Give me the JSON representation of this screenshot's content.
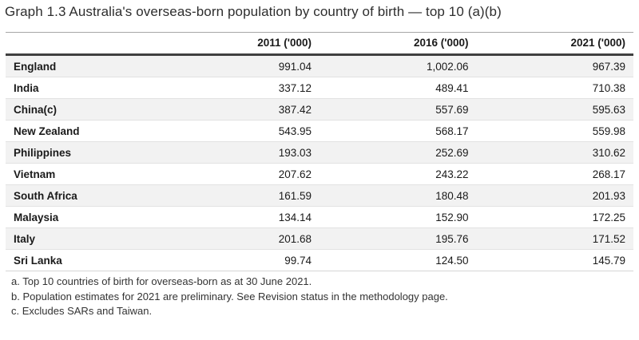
{
  "title": "Graph 1.3 Australia's overseas-born population by country of birth — top 10 (a)(b)",
  "table": {
    "columns": [
      "2011 ('000)",
      "2016 ('000)",
      "2021 ('000)"
    ],
    "rows": [
      {
        "country": "England",
        "values": [
          "991.04",
          "1,002.06",
          "967.39"
        ]
      },
      {
        "country": "India",
        "values": [
          "337.12",
          "489.41",
          "710.38"
        ]
      },
      {
        "country": "China(c)",
        "values": [
          "387.42",
          "557.69",
          "595.63"
        ]
      },
      {
        "country": "New Zealand",
        "values": [
          "543.95",
          "568.17",
          "559.98"
        ]
      },
      {
        "country": "Philippines",
        "values": [
          "193.03",
          "252.69",
          "310.62"
        ]
      },
      {
        "country": "Vietnam",
        "values": [
          "207.62",
          "243.22",
          "268.17"
        ]
      },
      {
        "country": "South Africa",
        "values": [
          "161.59",
          "180.48",
          "201.93"
        ]
      },
      {
        "country": "Malaysia",
        "values": [
          "134.14",
          "152.90",
          "172.25"
        ]
      },
      {
        "country": "Italy",
        "values": [
          "201.68",
          "195.76",
          "171.52"
        ]
      },
      {
        "country": "Sri Lanka",
        "values": [
          "99.74",
          "124.50",
          "145.79"
        ]
      }
    ]
  },
  "footnotes": [
    "a. Top 10 countries of birth for overseas-born as at 30 June 2021.",
    "b. Population estimates for 2021 are preliminary. See Revision status in the methodology page.",
    "c. Excludes SARs and Taiwan."
  ],
  "colors": {
    "row_stripe": "#f2f2f2",
    "row_border": "#e2e2e2",
    "header_rule_top": "#a6a6a6",
    "header_rule_bottom": "#404040",
    "text": "#1a1a1a",
    "title_text": "#2e2e2e",
    "footnote_text": "#333333"
  },
  "chart_data": {
    "type": "table",
    "title": "Graph 1.3 Australia's overseas-born population by country of birth — top 10 (a)(b)",
    "categories": [
      "England",
      "India",
      "China(c)",
      "New Zealand",
      "Philippines",
      "Vietnam",
      "South Africa",
      "Malaysia",
      "Italy",
      "Sri Lanka"
    ],
    "series": [
      {
        "name": "2011 ('000)",
        "values": [
          991.04,
          337.12,
          387.42,
          543.95,
          193.03,
          207.62,
          161.59,
          134.14,
          201.68,
          99.74
        ]
      },
      {
        "name": "2016 ('000)",
        "values": [
          1002.06,
          489.41,
          557.69,
          568.17,
          252.69,
          243.22,
          180.48,
          152.9,
          195.76,
          124.5
        ]
      },
      {
        "name": "2021 ('000)",
        "values": [
          967.39,
          710.38,
          595.63,
          559.98,
          310.62,
          268.17,
          201.93,
          172.25,
          171.52,
          145.79
        ]
      }
    ],
    "footnotes": [
      "a. Top 10 countries of birth for overseas-born as at 30 June 2021.",
      "b. Population estimates for 2021 are preliminary. See Revision status in the methodology page.",
      "c. Excludes SARs and Taiwan."
    ],
    "value_alignment": "right",
    "striped_rows": true,
    "legend_position": "none"
  }
}
